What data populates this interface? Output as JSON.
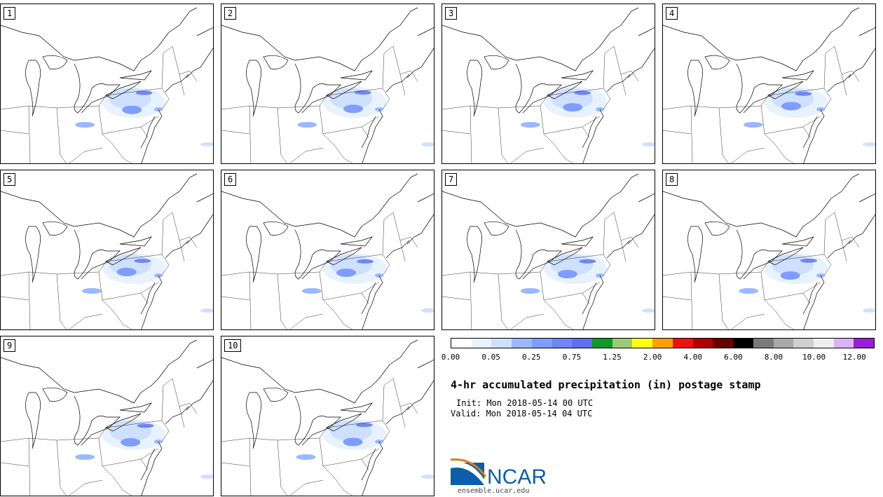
{
  "panels": [
    {
      "label": "1"
    },
    {
      "label": "2"
    },
    {
      "label": "3"
    },
    {
      "label": "4"
    },
    {
      "label": "5"
    },
    {
      "label": "6"
    },
    {
      "label": "7"
    },
    {
      "label": "8"
    },
    {
      "label": "9"
    },
    {
      "label": "10"
    }
  ],
  "colorbar": {
    "colors": [
      "#ffffff",
      "#e8f2ff",
      "#cfe0ff",
      "#9ab8ff",
      "#7f9cff",
      "#6f86f6",
      "#5f6ff0",
      "#0d9a2b",
      "#9ccb72",
      "#ffff1a",
      "#ff9f00",
      "#ee1010",
      "#b00000",
      "#6b0000",
      "#000000",
      "#7a7a7a",
      "#a8a8a8",
      "#cfcfcf",
      "#eeeeee",
      "#dcb2f5",
      "#9a1ed8"
    ],
    "tick_labels": [
      "0.00",
      "0.05",
      "0.25",
      "0.75",
      "1.25",
      "2.00",
      "4.00",
      "6.00",
      "8.00",
      "10.00",
      "12.00"
    ]
  },
  "title": "4-hr accumulated precipitation (in) postage stamp",
  "init": "Init: Mon 2018-05-14 00 UTC",
  "valid": "Valid: Mon 2018-05-14 04 UTC",
  "logo": {
    "text": "NCAR",
    "color": "#0b5ea8"
  },
  "url": "ensemble.ucar.edu"
}
